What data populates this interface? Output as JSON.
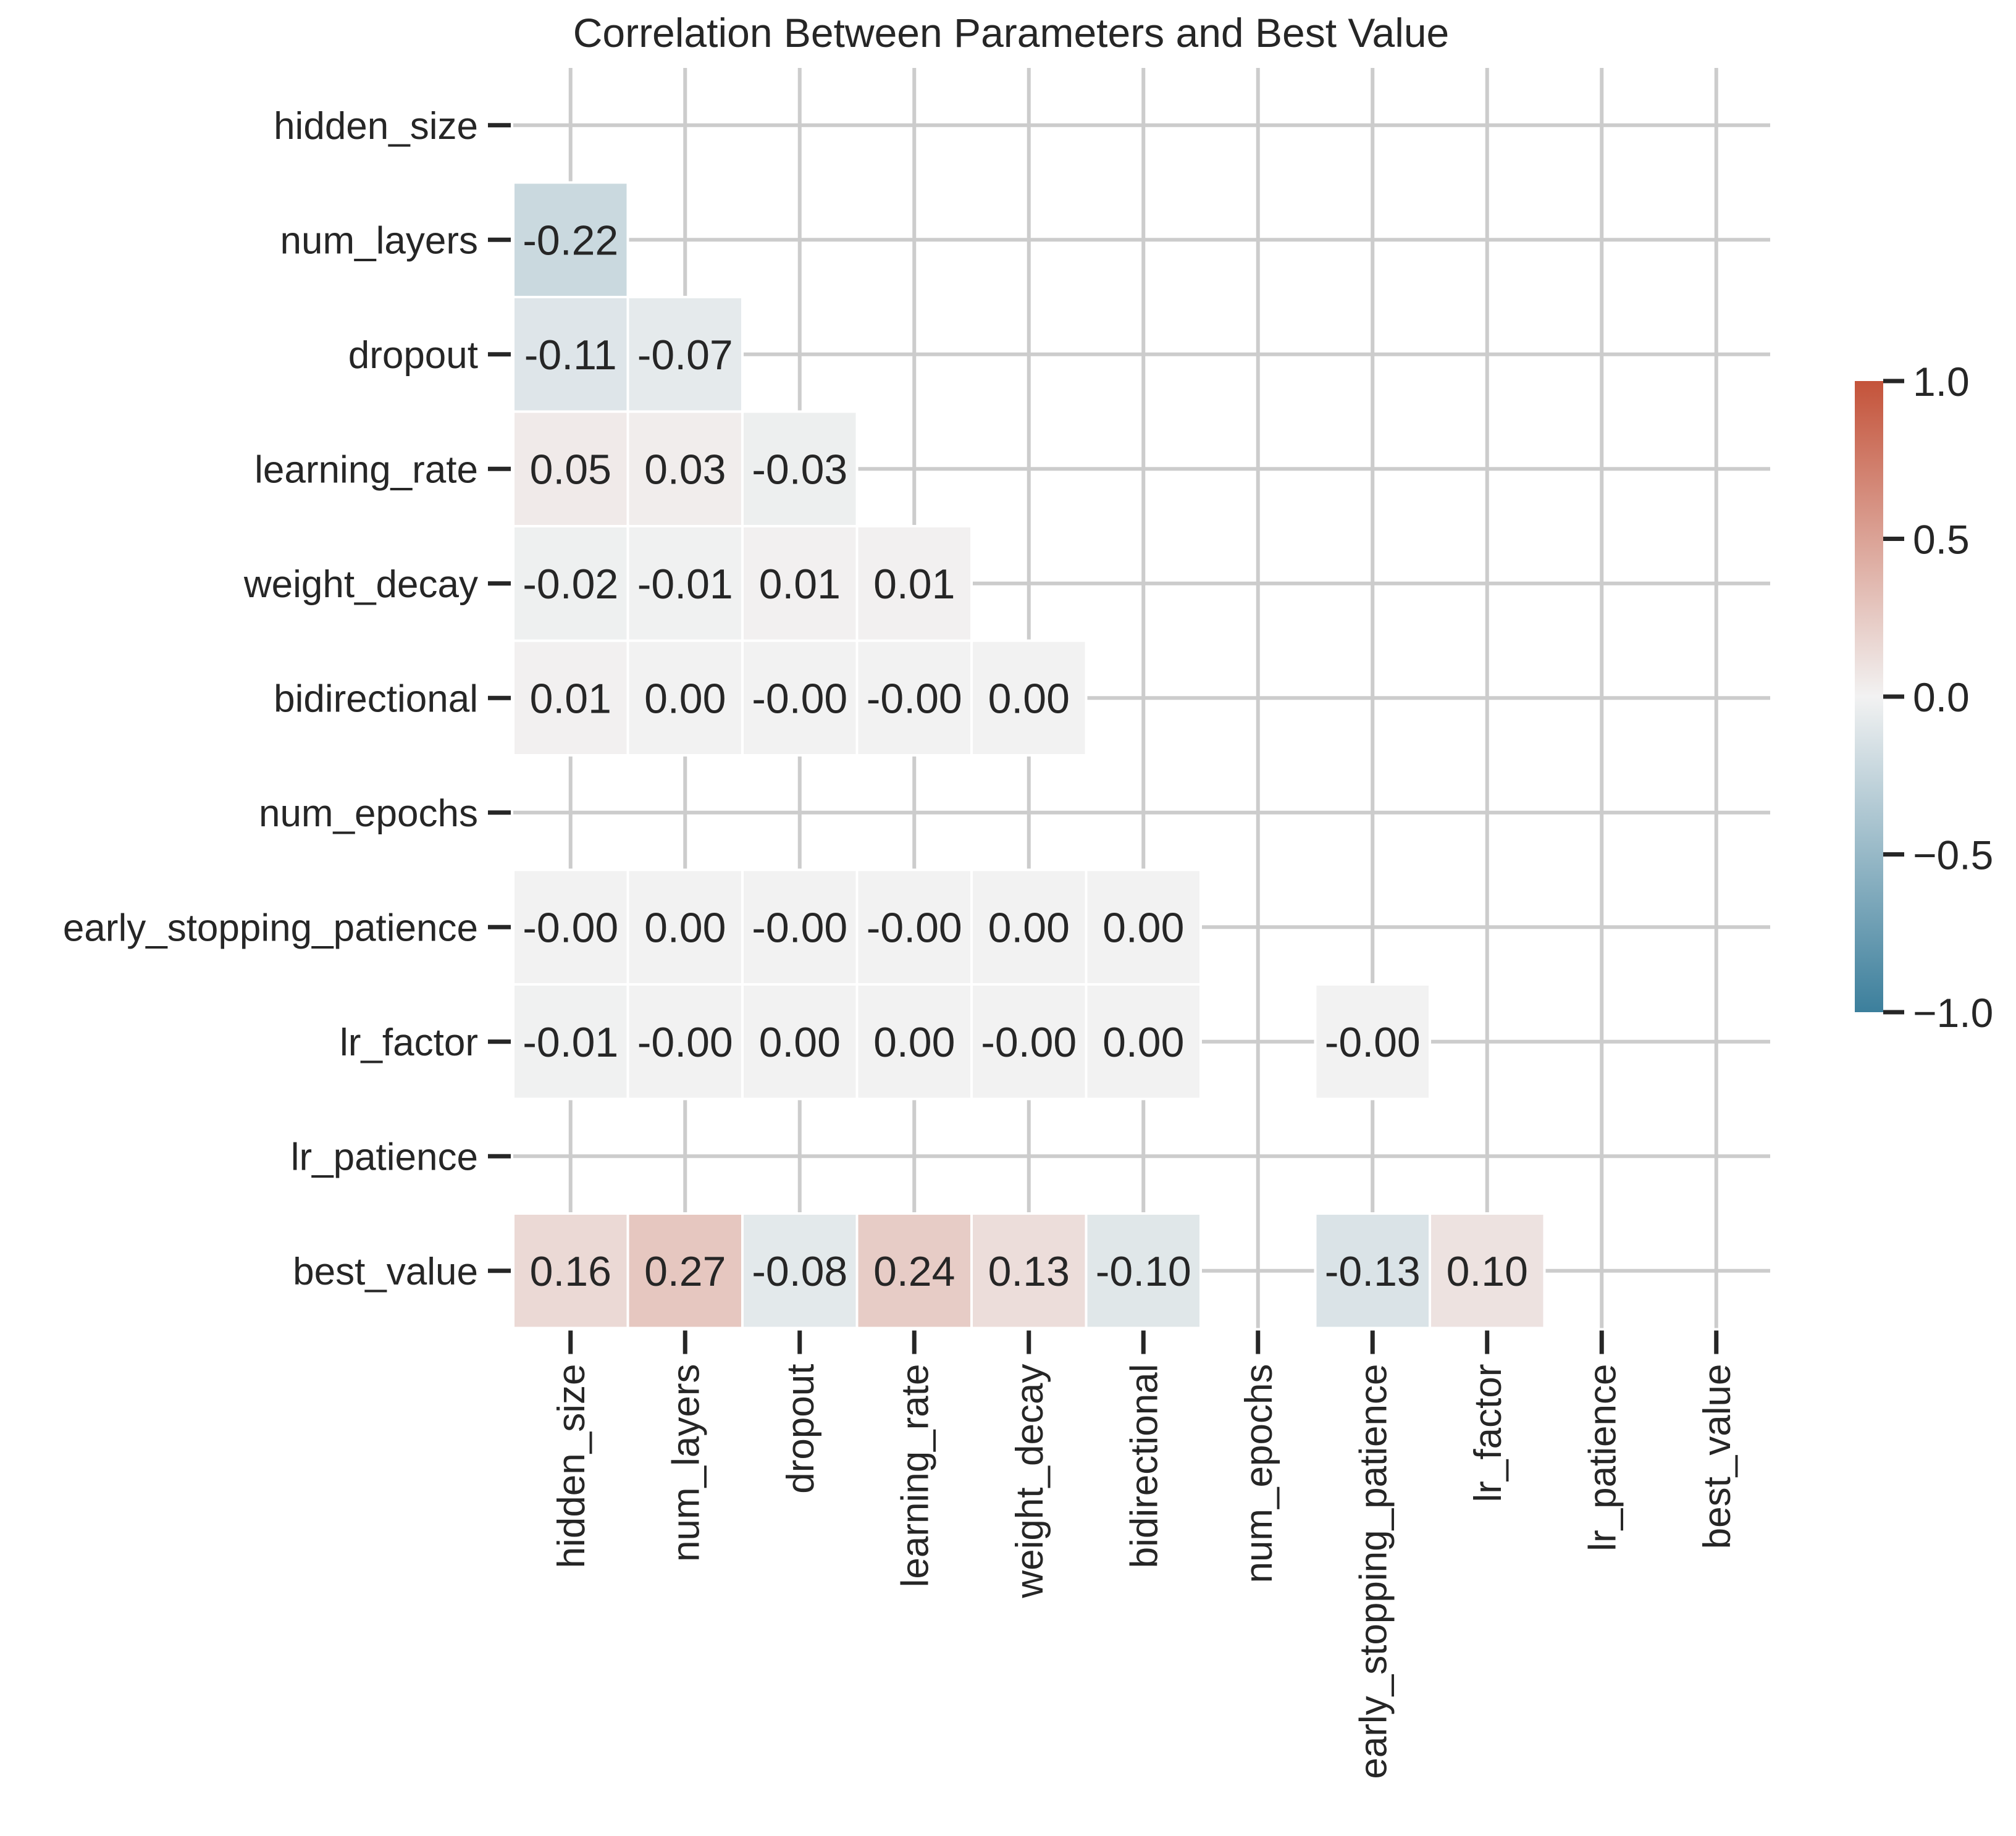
{
  "chart_data": {
    "type": "heatmap",
    "title": "Correlation Between Parameters and Best Value",
    "labels": [
      "hidden_size",
      "num_layers",
      "dropout",
      "learning_rate",
      "weight_decay",
      "bidirectional",
      "num_epochs",
      "early_stopping_patience",
      "lr_factor",
      "lr_patience",
      "best_value"
    ],
    "cells": [
      {
        "row": 1,
        "col": 0,
        "value": -0.22,
        "label": "-0.22"
      },
      {
        "row": 2,
        "col": 0,
        "value": -0.11,
        "label": "-0.11"
      },
      {
        "row": 2,
        "col": 1,
        "value": -0.07,
        "label": "-0.07"
      },
      {
        "row": 3,
        "col": 0,
        "value": 0.05,
        "label": "0.05"
      },
      {
        "row": 3,
        "col": 1,
        "value": 0.03,
        "label": "0.03"
      },
      {
        "row": 3,
        "col": 2,
        "value": -0.03,
        "label": "-0.03"
      },
      {
        "row": 4,
        "col": 0,
        "value": -0.02,
        "label": "-0.02"
      },
      {
        "row": 4,
        "col": 1,
        "value": -0.01,
        "label": "-0.01"
      },
      {
        "row": 4,
        "col": 2,
        "value": 0.01,
        "label": "0.01"
      },
      {
        "row": 4,
        "col": 3,
        "value": 0.01,
        "label": "0.01"
      },
      {
        "row": 5,
        "col": 0,
        "value": 0.01,
        "label": "0.01"
      },
      {
        "row": 5,
        "col": 1,
        "value": 0.0,
        "label": "0.00"
      },
      {
        "row": 5,
        "col": 2,
        "value": -0.0,
        "label": "-0.00"
      },
      {
        "row": 5,
        "col": 3,
        "value": -0.0,
        "label": "-0.00"
      },
      {
        "row": 5,
        "col": 4,
        "value": 0.0,
        "label": "0.00"
      },
      {
        "row": 7,
        "col": 0,
        "value": -0.0,
        "label": "-0.00"
      },
      {
        "row": 7,
        "col": 1,
        "value": 0.0,
        "label": "0.00"
      },
      {
        "row": 7,
        "col": 2,
        "value": -0.0,
        "label": "-0.00"
      },
      {
        "row": 7,
        "col": 3,
        "value": -0.0,
        "label": "-0.00"
      },
      {
        "row": 7,
        "col": 4,
        "value": 0.0,
        "label": "0.00"
      },
      {
        "row": 7,
        "col": 5,
        "value": 0.0,
        "label": "0.00"
      },
      {
        "row": 8,
        "col": 0,
        "value": -0.01,
        "label": "-0.01"
      },
      {
        "row": 8,
        "col": 1,
        "value": -0.0,
        "label": "-0.00"
      },
      {
        "row": 8,
        "col": 2,
        "value": 0.0,
        "label": "0.00"
      },
      {
        "row": 8,
        "col": 3,
        "value": 0.0,
        "label": "0.00"
      },
      {
        "row": 8,
        "col": 4,
        "value": -0.0,
        "label": "-0.00"
      },
      {
        "row": 8,
        "col": 5,
        "value": 0.0,
        "label": "0.00"
      },
      {
        "row": 8,
        "col": 7,
        "value": -0.0,
        "label": "-0.00"
      },
      {
        "row": 10,
        "col": 0,
        "value": 0.16,
        "label": "0.16"
      },
      {
        "row": 10,
        "col": 1,
        "value": 0.27,
        "label": "0.27"
      },
      {
        "row": 10,
        "col": 2,
        "value": -0.08,
        "label": "-0.08"
      },
      {
        "row": 10,
        "col": 3,
        "value": 0.24,
        "label": "0.24"
      },
      {
        "row": 10,
        "col": 4,
        "value": 0.13,
        "label": "0.13"
      },
      {
        "row": 10,
        "col": 5,
        "value": -0.1,
        "label": "-0.10"
      },
      {
        "row": 10,
        "col": 7,
        "value": -0.13,
        "label": "-0.13"
      },
      {
        "row": 10,
        "col": 8,
        "value": 0.1,
        "label": "0.10"
      }
    ],
    "colorbar": {
      "range": [
        -1.0,
        1.0
      ],
      "ticks": [
        "1.0",
        "0.5",
        "0.0",
        "−0.5",
        "−1.0"
      ],
      "tick_values": [
        1.0,
        0.5,
        0.0,
        -0.5,
        -1.0
      ],
      "colormap": "diverging blue-white-red",
      "low_color": "#3c7f9c",
      "mid_color": "#f2f2f2",
      "high_color": "#c4533a"
    },
    "grid": true
  }
}
